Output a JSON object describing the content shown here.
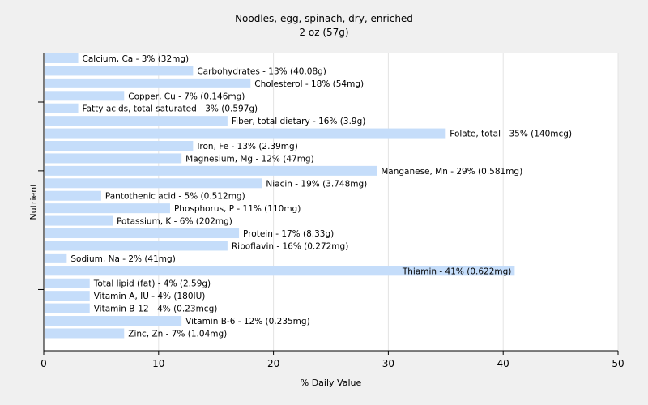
{
  "chart_data": {
    "type": "bar",
    "orientation": "horizontal",
    "title": "Noodles, egg, spinach, dry, enriched",
    "subtitle": "2 oz (57g)",
    "xlabel": "% Daily Value",
    "ylabel": "Nutrient",
    "xlim": [
      0,
      50
    ],
    "xticks": [
      0,
      10,
      20,
      30,
      40,
      50
    ],
    "grid": "vertical",
    "colors": {
      "bar": "#c5ddfa",
      "background": "#f0f0f0",
      "plot_background": "#ffffff",
      "grid": "#e4e4e4",
      "axis": "#000000"
    },
    "categories": [
      "Calcium, Ca",
      "Carbohydrates",
      "Cholesterol",
      "Copper, Cu",
      "Fatty acids, total saturated",
      "Fiber, total dietary",
      "Folate, total",
      "Iron, Fe",
      "Magnesium, Mg",
      "Manganese, Mn",
      "Niacin",
      "Pantothenic acid",
      "Phosphorus, P",
      "Potassium, K",
      "Protein",
      "Riboflavin",
      "Sodium, Na",
      "Thiamin",
      "Total lipid (fat)",
      "Vitamin A, IU",
      "Vitamin B-12",
      "Vitamin B-6",
      "Zinc, Zn"
    ],
    "values": [
      3,
      13,
      18,
      7,
      3,
      16,
      35,
      13,
      12,
      29,
      19,
      5,
      11,
      6,
      17,
      16,
      2,
      41,
      4,
      4,
      4,
      12,
      7
    ],
    "labels": [
      "Calcium, Ca - 3% (32mg)",
      "Carbohydrates - 13% (40.08g)",
      "Cholesterol - 18% (54mg)",
      "Copper, Cu - 7% (0.146mg)",
      "Fatty acids, total saturated - 3% (0.597g)",
      "Fiber, total dietary - 16% (3.9g)",
      "Folate, total - 35% (140mcg)",
      "Iron, Fe - 13% (2.39mg)",
      "Magnesium, Mg - 12% (47mg)",
      "Manganese, Mn - 29% (0.581mg)",
      "Niacin - 19% (3.748mg)",
      "Pantothenic acid - 5% (0.512mg)",
      "Phosphorus, P - 11% (110mg)",
      "Potassium, K - 6% (202mg)",
      "Protein - 17% (8.33g)",
      "Riboflavin - 16% (0.272mg)",
      "Sodium, Na - 2% (41mg)",
      "Thiamin - 41% (0.622mg)",
      "Total lipid (fat) - 4% (2.59g)",
      "Vitamin A, IU - 4% (180IU)",
      "Vitamin B-12 - 4% (0.23mcg)",
      "Vitamin B-6 - 12% (0.235mg)",
      "Zinc, Zn - 7% (1.04mg)"
    ]
  }
}
